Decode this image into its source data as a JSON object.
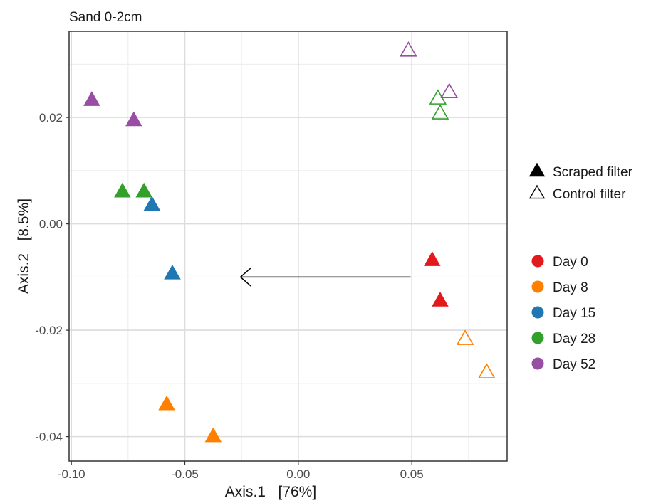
{
  "chart_data": {
    "type": "scatter",
    "title": "Sand 0-2cm",
    "xlabel": "Axis.1   [76%]",
    "ylabel": "Axis.2   [8.5%]",
    "xlim": [
      -0.101,
      0.092
    ],
    "ylim": [
      -0.0446,
      0.0362
    ],
    "xticks": [
      -0.1,
      -0.05,
      0.0,
      0.05
    ],
    "xtick_labels": [
      "-0.10",
      "-0.05",
      "0.00",
      "0.05"
    ],
    "yticks": [
      -0.04,
      -0.02,
      0.0,
      0.02
    ],
    "ytick_labels": [
      "-0.04",
      "-0.02",
      "0.00",
      "0.02"
    ],
    "grid": true,
    "legend_position": "right",
    "shape_legend": [
      {
        "label": "Scraped filter",
        "marker": "filled-triangle"
      },
      {
        "label": "Control filter",
        "marker": "open-triangle"
      }
    ],
    "color_legend": [
      {
        "label": "Day 0",
        "color": "#e31a1c"
      },
      {
        "label": "Day 8",
        "color": "#ff7f00"
      },
      {
        "label": "Day 15",
        "color": "#1f78b4"
      },
      {
        "label": "Day 28",
        "color": "#33a02c"
      },
      {
        "label": "Day 52",
        "color": "#984ea3"
      }
    ],
    "points": [
      {
        "x": -0.091,
        "y": 0.0232,
        "group": "Day 52",
        "filter": "Scraped filter"
      },
      {
        "x": -0.0725,
        "y": 0.0194,
        "group": "Day 52",
        "filter": "Scraped filter"
      },
      {
        "x": -0.0775,
        "y": 0.006,
        "group": "Day 28",
        "filter": "Scraped filter"
      },
      {
        "x": -0.068,
        "y": 0.006,
        "group": "Day 28",
        "filter": "Scraped filter"
      },
      {
        "x": -0.0645,
        "y": 0.0035,
        "group": "Day 15",
        "filter": "Scraped filter"
      },
      {
        "x": -0.0555,
        "y": -0.0094,
        "group": "Day 15",
        "filter": "Scraped filter"
      },
      {
        "x": -0.058,
        "y": -0.034,
        "group": "Day 8",
        "filter": "Scraped filter"
      },
      {
        "x": -0.0375,
        "y": -0.04,
        "group": "Day 8",
        "filter": "Scraped filter"
      },
      {
        "x": 0.059,
        "y": -0.0069,
        "group": "Day 0",
        "filter": "Scraped filter"
      },
      {
        "x": 0.0625,
        "y": -0.0145,
        "group": "Day 0",
        "filter": "Scraped filter"
      },
      {
        "x": 0.0485,
        "y": 0.0325,
        "group": "Day 52",
        "filter": "Control filter"
      },
      {
        "x": 0.0665,
        "y": 0.0247,
        "group": "Day 52",
        "filter": "Control filter"
      },
      {
        "x": 0.0615,
        "y": 0.0235,
        "group": "Day 28",
        "filter": "Control filter"
      },
      {
        "x": 0.0625,
        "y": 0.0207,
        "group": "Day 28",
        "filter": "Control filter"
      },
      {
        "x": 0.0735,
        "y": -0.0217,
        "group": "Day 8",
        "filter": "Control filter"
      },
      {
        "x": 0.083,
        "y": -0.028,
        "group": "Day 8",
        "filter": "Control filter"
      }
    ],
    "annotations": [
      {
        "type": "arrow",
        "x_from": 0.0495,
        "y_from": -0.01,
        "x_to": -0.0255,
        "y_to": -0.01
      }
    ]
  }
}
